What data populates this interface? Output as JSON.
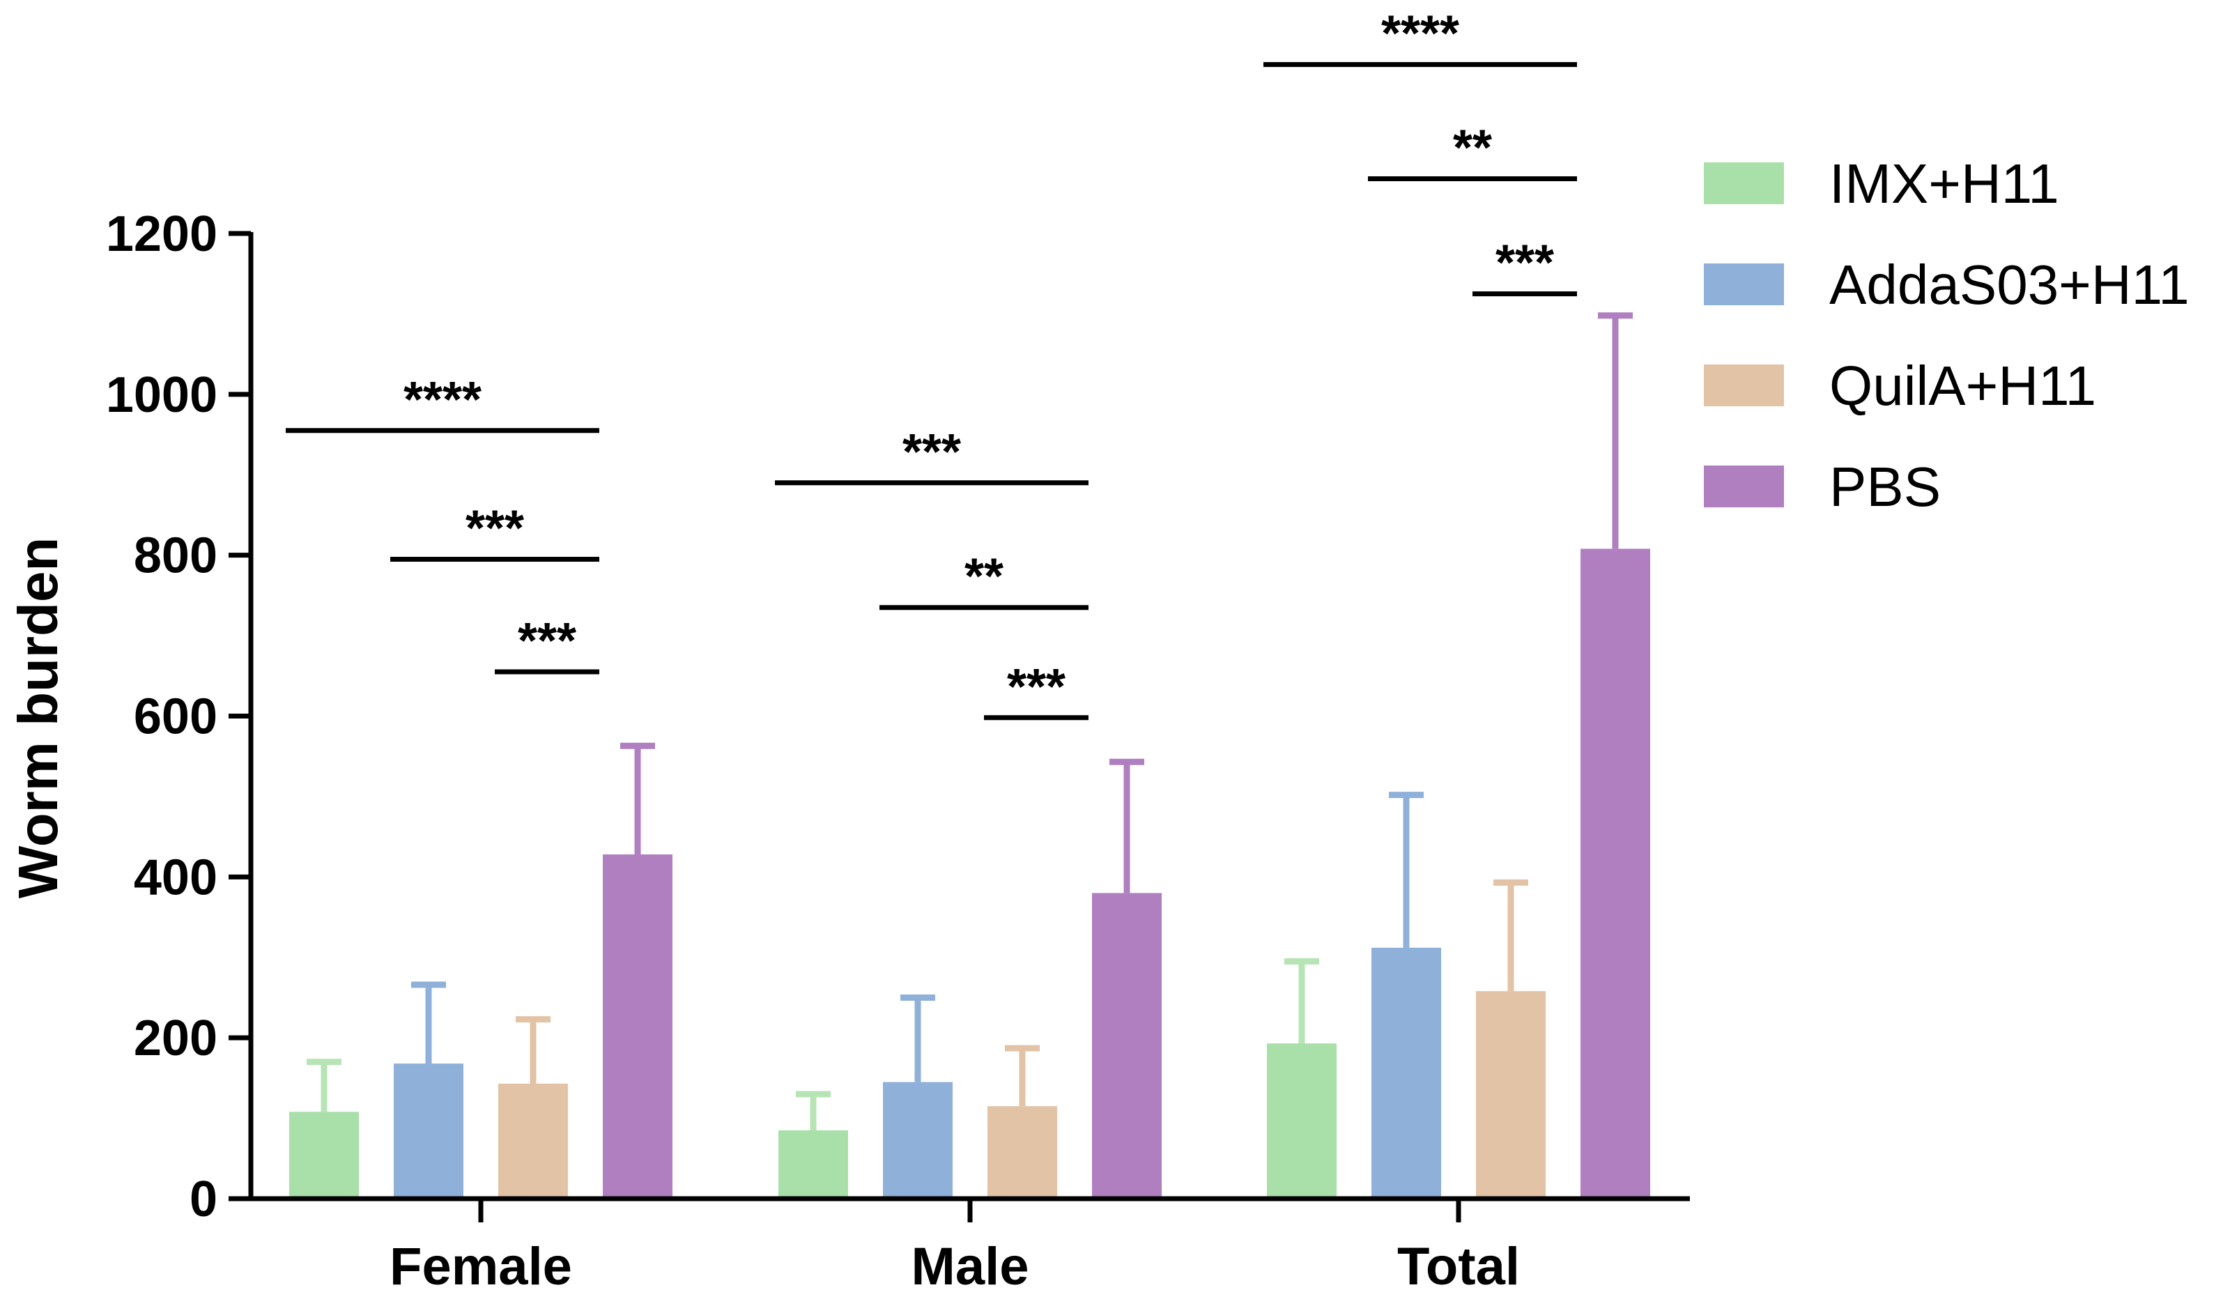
{
  "chart_data": {
    "type": "bar",
    "title": "",
    "xlabel": "",
    "ylabel": "Worm burden",
    "ylim": [
      0,
      1200
    ],
    "yticks": [
      "0",
      "200",
      "400",
      "600",
      "800",
      "1000",
      "1200"
    ],
    "categories": [
      "Female",
      "Male",
      "Total"
    ],
    "series": [
      {
        "name": "IMX+H11",
        "color": "#a9dfa9",
        "errcolor": "#b6e4b4",
        "values": [
          108,
          85,
          193
        ],
        "errors": [
          62,
          45,
          102
        ]
      },
      {
        "name": "AddaS03+H11",
        "color": "#8fb0d8",
        "errcolor": "#8fb0d8",
        "values": [
          168,
          145,
          312
        ],
        "errors": [
          98,
          105,
          190
        ]
      },
      {
        "name": "QuilA+H11",
        "color": "#e2c3a6",
        "errcolor": "#e2c3a6",
        "values": [
          143,
          115,
          258
        ],
        "errors": [
          80,
          72,
          135
        ]
      },
      {
        "name": "PBS",
        "color": "#b07fc0",
        "errcolor": "#b07fc0",
        "values": [
          428,
          380,
          808
        ],
        "errors": [
          135,
          163,
          290
        ]
      }
    ],
    "significance": [
      {
        "category": 0,
        "from": 0,
        "to": 3,
        "y": 955,
        "label": "****"
      },
      {
        "category": 0,
        "from": 1,
        "to": 3,
        "y": 795,
        "label": "***"
      },
      {
        "category": 0,
        "from": 2,
        "to": 3,
        "y": 655,
        "label": "***"
      },
      {
        "category": 1,
        "from": 0,
        "to": 3,
        "y": 890,
        "label": "***"
      },
      {
        "category": 1,
        "from": 1,
        "to": 3,
        "y": 735,
        "label": "**"
      },
      {
        "category": 1,
        "from": 2,
        "to": 3,
        "y": 598,
        "label": "***"
      },
      {
        "category": 2,
        "from": 0,
        "to": 3,
        "y": 1410,
        "label": "****"
      },
      {
        "category": 2,
        "from": 1,
        "to": 3,
        "y": 1268,
        "label": "**"
      },
      {
        "category": 2,
        "from": 2,
        "to": 3,
        "y": 1125,
        "label": "***"
      }
    ],
    "legend_position": "right"
  }
}
